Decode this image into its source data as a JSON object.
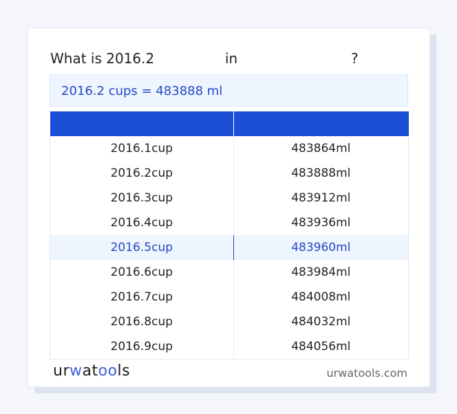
{
  "question": {
    "prefix": "What is 2016.2",
    "middle": "in",
    "suffix": "?"
  },
  "result": "2016.2 cups = 483888 ml",
  "table": {
    "headers": [
      "",
      ""
    ],
    "rows": [
      [
        "2016.1cup",
        "483864ml"
      ],
      [
        "2016.2cup",
        "483888ml"
      ],
      [
        "2016.3cup",
        "483912ml"
      ],
      [
        "2016.4cup",
        "483936ml"
      ],
      [
        "2016.5cup",
        "483960ml"
      ],
      [
        "2016.6cup",
        "483984ml"
      ],
      [
        "2016.7cup",
        "484008ml"
      ],
      [
        "2016.8cup",
        "484032ml"
      ],
      [
        "2016.9cup",
        "484056ml"
      ]
    ],
    "highlighted_row": 4
  },
  "footer": {
    "logo": "urwatools",
    "site": "urwatools.com"
  },
  "colors": {
    "accent": "#1c4fd6",
    "highlight_bg": "#eef5fe",
    "highlight_text": "#2448c4"
  }
}
